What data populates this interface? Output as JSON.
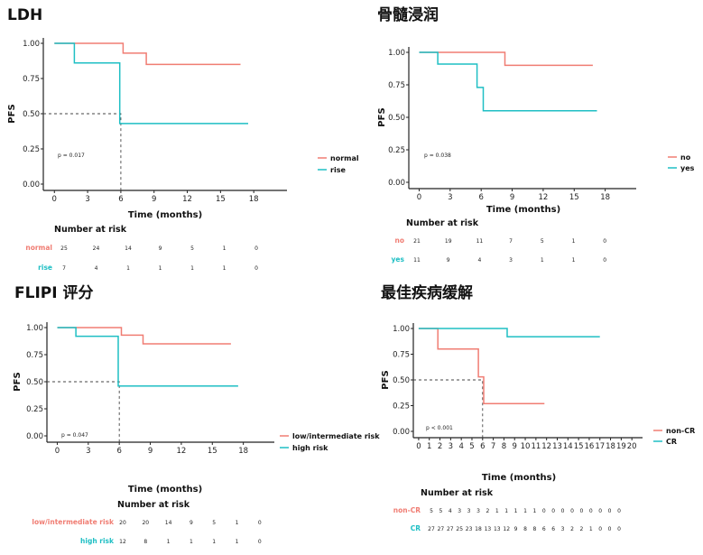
{
  "colors": {
    "red": "#F07D73",
    "teal": "#1FBFC4"
  },
  "chart_data": [
    {
      "type": "line",
      "subtype": "kaplan-meier",
      "title": "LDH",
      "ylabel": "PFS",
      "xlabel": "Time (months)",
      "xticks": [
        0,
        3,
        6,
        9,
        12,
        15,
        18
      ],
      "yticks": [
        "0.00",
        "0.25",
        "0.50",
        "0.75",
        "1.00"
      ],
      "xlim": [
        -1,
        21
      ],
      "ylim": [
        0,
        1
      ],
      "pvalue": "p = 0.017",
      "median_marker": {
        "x": 6,
        "y": 0.5
      },
      "series": [
        {
          "name": "normal",
          "color": "#F07D73",
          "x": [
            0,
            6.2,
            6.2,
            8.3,
            8.3,
            16.8
          ],
          "y": [
            1.0,
            1.0,
            0.93,
            0.93,
            0.85,
            0.85
          ]
        },
        {
          "name": "rise",
          "color": "#1FBFC4",
          "x": [
            0,
            1.8,
            1.8,
            5.9,
            5.9,
            17.5
          ],
          "y": [
            1.0,
            1.0,
            0.86,
            0.86,
            0.43,
            0.43
          ]
        }
      ],
      "risk_table": {
        "title": "Number at risk",
        "rows": [
          {
            "label": "normal",
            "color": "#F07D73",
            "values": [
              "25",
              "24",
              "14",
              "9",
              "5",
              "1",
              "0"
            ]
          },
          {
            "label": "rise",
            "color": "#1FBFC4",
            "values": [
              "7",
              "4",
              "1",
              "1",
              "1",
              "1",
              "0"
            ]
          }
        ]
      }
    },
    {
      "type": "line",
      "subtype": "kaplan-meier",
      "title": "骨髓浸润",
      "ylabel": "PFS",
      "xlabel": "Time (months)",
      "xticks": [
        0,
        3,
        6,
        9,
        12,
        15,
        18
      ],
      "yticks": [
        "0.00",
        "0.25",
        "0.50",
        "0.75",
        "1.00"
      ],
      "xlim": [
        -1,
        21
      ],
      "ylim": [
        0,
        1
      ],
      "pvalue": "p = 0.038",
      "median_marker": null,
      "series": [
        {
          "name": "no",
          "color": "#F07D73",
          "x": [
            0,
            8.3,
            8.3,
            16.8
          ],
          "y": [
            1.0,
            1.0,
            0.9,
            0.9
          ]
        },
        {
          "name": "yes",
          "color": "#1FBFC4",
          "x": [
            0,
            1.8,
            1.8,
            5.6,
            5.6,
            6.2,
            6.2,
            17.2
          ],
          "y": [
            1.0,
            1.0,
            0.91,
            0.91,
            0.73,
            0.73,
            0.55,
            0.55
          ]
        }
      ],
      "risk_table": {
        "title": "Number at risk",
        "rows": [
          {
            "label": "no",
            "color": "#F07D73",
            "values": [
              "21",
              "19",
              "11",
              "7",
              "5",
              "1",
              "0"
            ]
          },
          {
            "label": "yes",
            "color": "#1FBFC4",
            "values": [
              "11",
              "9",
              "4",
              "3",
              "1",
              "1",
              "0"
            ]
          }
        ]
      }
    },
    {
      "type": "line",
      "subtype": "kaplan-meier",
      "title": "FLIPI 评分",
      "ylabel": "PFS",
      "xlabel": "Time (months)",
      "xticks": [
        0,
        3,
        6,
        9,
        12,
        15,
        18
      ],
      "yticks": [
        "0.00",
        "0.25",
        "0.50",
        "0.75",
        "1.00"
      ],
      "xlim": [
        -1,
        21
      ],
      "ylim": [
        0,
        1
      ],
      "pvalue": "p = 0.047",
      "median_marker": {
        "x": 6,
        "y": 0.5
      },
      "series": [
        {
          "name": "low/intermediate risk",
          "color": "#F07D73",
          "x": [
            0,
            6.2,
            6.2,
            8.3,
            8.3,
            16.8
          ],
          "y": [
            1.0,
            1.0,
            0.93,
            0.93,
            0.85,
            0.85
          ]
        },
        {
          "name": "high risk",
          "color": "#1FBFC4",
          "x": [
            0,
            1.8,
            1.8,
            5.9,
            5.9,
            17.5
          ],
          "y": [
            1.0,
            1.0,
            0.92,
            0.92,
            0.46,
            0.46
          ]
        }
      ],
      "risk_table": {
        "title": "Number at risk",
        "rows": [
          {
            "label": "low/intermediate risk",
            "color": "#F07D73",
            "values": [
              "20",
              "20",
              "14",
              "9",
              "5",
              "1",
              "0"
            ]
          },
          {
            "label": "high risk",
            "color": "#1FBFC4",
            "values": [
              "12",
              "8",
              "1",
              "1",
              "1",
              "1",
              "0"
            ]
          }
        ]
      }
    },
    {
      "type": "line",
      "subtype": "kaplan-meier",
      "title": "最佳疾病缓解",
      "ylabel": "PFS",
      "xlabel": "Time (months)",
      "xticks": [
        0,
        1,
        2,
        3,
        4,
        5,
        6,
        7,
        8,
        9,
        10,
        11,
        12,
        13,
        14,
        15,
        16,
        17,
        18,
        19,
        20
      ],
      "yticks": [
        "0.00",
        "0.25",
        "0.50",
        "0.75",
        "1.00"
      ],
      "xlim": [
        -0.5,
        21
      ],
      "ylim": [
        0,
        1
      ],
      "pvalue": "p < 0.001",
      "median_marker": {
        "x": 6,
        "y": 0.5
      },
      "series": [
        {
          "name": "non-CR",
          "color": "#F07D73",
          "x": [
            0,
            1.8,
            1.8,
            5.6,
            5.6,
            6.1,
            6.1,
            11.8
          ],
          "y": [
            1.0,
            1.0,
            0.8,
            0.8,
            0.53,
            0.53,
            0.27,
            0.27
          ]
        },
        {
          "name": "CR",
          "color": "#1FBFC4",
          "x": [
            0,
            8.3,
            8.3,
            17.0
          ],
          "y": [
            1.0,
            1.0,
            0.92,
            0.92
          ]
        }
      ],
      "risk_table": {
        "title": "Number at risk",
        "rows": [
          {
            "label": "non-CR",
            "color": "#F07D73",
            "values": [
              "5",
              "5",
              "4",
              "3",
              "3",
              "3",
              "2",
              "1",
              "1",
              "1",
              "1",
              "1",
              "0",
              "0",
              "0",
              "0",
              "0",
              "0",
              "0",
              "0",
              "0"
            ]
          },
          {
            "label": "CR",
            "color": "#1FBFC4",
            "values": [
              "27",
              "27",
              "27",
              "25",
              "23",
              "18",
              "13",
              "13",
              "12",
              "9",
              "8",
              "8",
              "6",
              "6",
              "3",
              "2",
              "2",
              "1",
              "0",
              "0",
              "0"
            ]
          }
        ]
      }
    }
  ]
}
